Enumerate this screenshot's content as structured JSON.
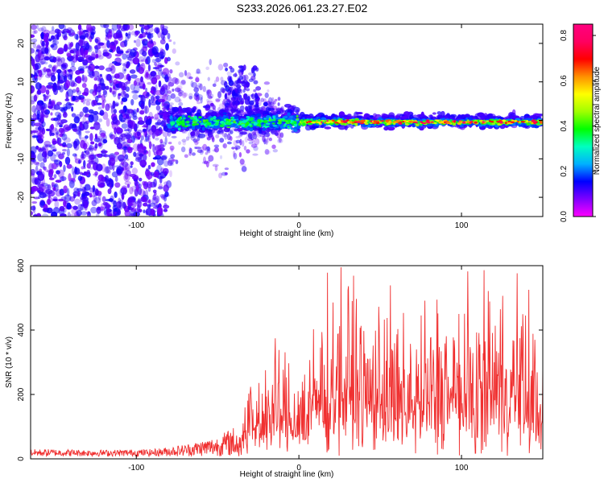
{
  "title": "S233.2026.061.23.27.E02",
  "chart_data": [
    {
      "type": "heatmap",
      "name": "spectrogram",
      "xlabel": "Height of straight line (km)",
      "ylabel": "Frequency (Hz)",
      "xlim": [
        -165,
        150
      ],
      "ylim": [
        -25,
        25
      ],
      "xticks": [
        -100,
        0,
        100
      ],
      "yticks": [
        -20,
        -10,
        0,
        10,
        20
      ],
      "colorbar": {
        "label": "Normalized spectral amplitude",
        "range": [
          0.0,
          0.85
        ],
        "ticks": [
          0.0,
          0.2,
          0.4,
          0.6,
          0.8
        ],
        "colormap": [
          "#ff00ff",
          "#7f00ff",
          "#0000ff",
          "#00b0ff",
          "#00ffc0",
          "#00ff00",
          "#a0ff00",
          "#ffff00",
          "#ff9000",
          "#ff0000",
          "#ff0060",
          "#ff0080"
        ]
      },
      "features": {
        "noise_region_x": [
          -165,
          -80
        ],
        "signal_band_frequency_hz": 0,
        "signal_start_x": -80,
        "peak_amplitude": 0.8
      }
    },
    {
      "type": "line",
      "name": "snr",
      "xlabel": "Height of straight line (km)",
      "ylabel": "SNR (10 * v/v)",
      "xlim": [
        -165,
        150
      ],
      "ylim": [
        0,
        600
      ],
      "xticks": [
        -100,
        0,
        100
      ],
      "yticks": [
        0,
        200,
        400,
        600
      ],
      "color": "#f03030",
      "series": [
        {
          "name": "SNR",
          "x": [
            -165,
            -150,
            -120,
            -90,
            -70,
            -50,
            -40,
            -35,
            -30,
            -20,
            -10,
            0,
            10,
            20,
            30,
            35,
            40,
            50,
            60,
            70,
            80,
            90,
            100,
            110,
            120,
            130,
            140,
            150
          ],
          "envelope": [
            30,
            30,
            28,
            30,
            45,
            70,
            100,
            150,
            250,
            320,
            330,
            300,
            420,
            520,
            560,
            600,
            450,
            520,
            430,
            430,
            460,
            520,
            470,
            470,
            540,
            520,
            480,
            350
          ]
        }
      ]
    }
  ]
}
